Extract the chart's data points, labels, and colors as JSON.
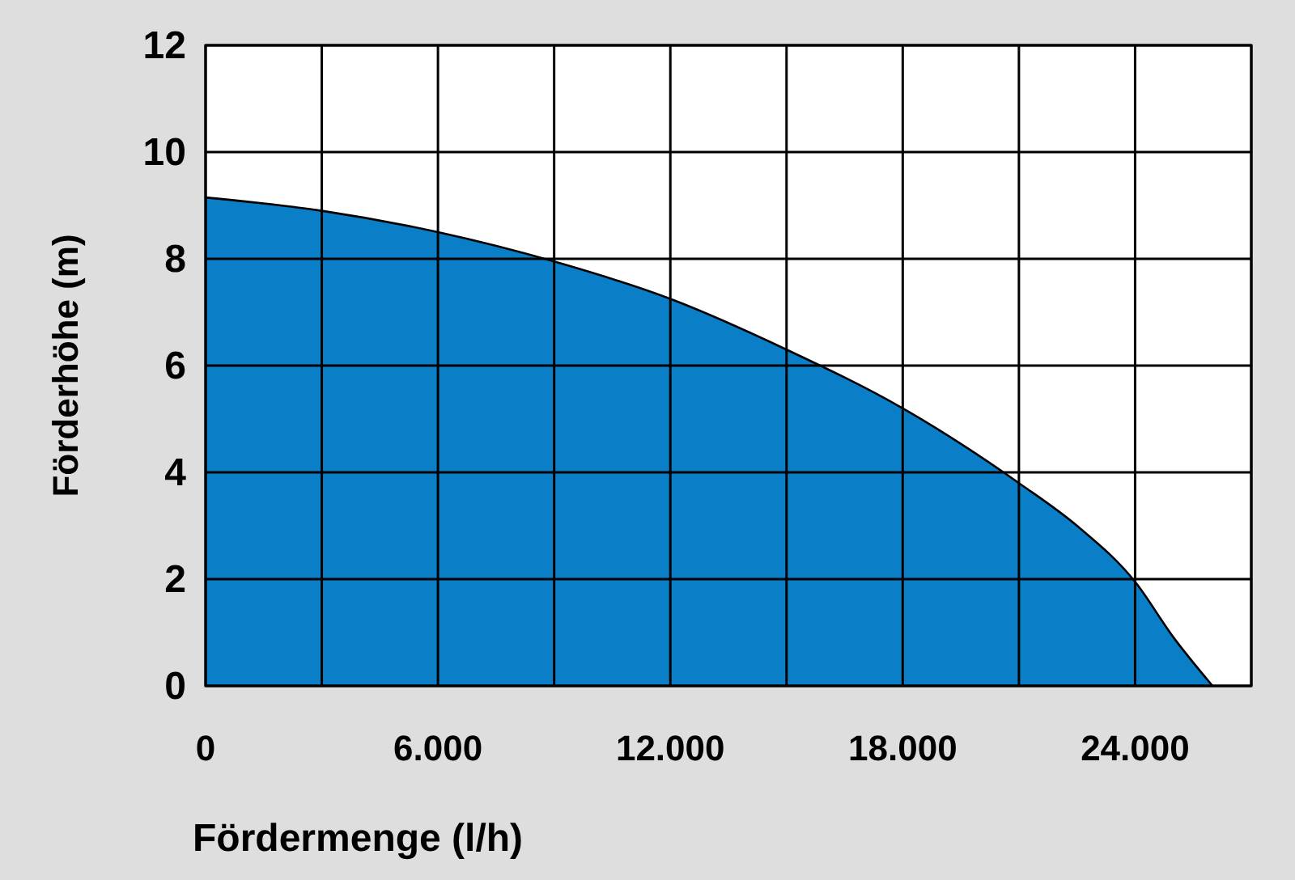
{
  "chart_data": {
    "type": "area",
    "xlabel": "Fördermenge (l/h)",
    "ylabel": "Förderhöhe (m)",
    "x": [
      0,
      3000,
      6000,
      9000,
      12000,
      15000,
      18000,
      21000,
      22500,
      24000,
      25000,
      26000
    ],
    "series": [
      {
        "color": "#0a7fc8",
        "values": [
          9.15,
          8.9,
          8.5,
          7.95,
          7.25,
          6.3,
          5.2,
          3.8,
          3,
          1.95,
          0.9,
          0
        ]
      }
    ],
    "xlim": [
      0,
      27000
    ],
    "ylim": [
      0,
      12
    ],
    "xticks": [
      {
        "value": 0,
        "label": "0"
      },
      {
        "value": 6000,
        "label": "6.000"
      },
      {
        "value": 12000,
        "label": "12.000"
      },
      {
        "value": 18000,
        "label": "18.000"
      },
      {
        "value": 24000,
        "label": "24.000"
      }
    ],
    "yticks": [
      0,
      2,
      4,
      6,
      8,
      10,
      12
    ],
    "grid": true
  }
}
